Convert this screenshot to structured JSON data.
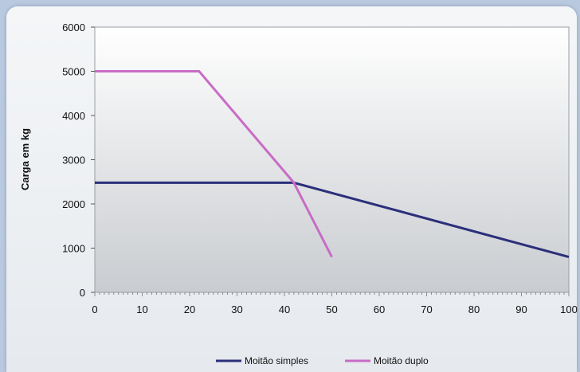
{
  "chart_data": {
    "type": "line",
    "title": "",
    "xlabel": "",
    "ylabel": "Carga em kg",
    "xlim": [
      0,
      100
    ],
    "ylim": [
      0,
      6000
    ],
    "xticks": [
      0,
      10,
      20,
      30,
      40,
      50,
      60,
      70,
      80,
      90,
      100
    ],
    "yticks": [
      0,
      1000,
      2000,
      3000,
      4000,
      5000,
      6000
    ],
    "legend_position": "bottom",
    "series": [
      {
        "name": "Moitão simples",
        "color": "#2b2f7a",
        "points": [
          [
            0,
            2480
          ],
          [
            42,
            2480
          ],
          [
            100,
            800
          ]
        ]
      },
      {
        "name": "Moitão duplo",
        "color": "#c86cc6",
        "points": [
          [
            0,
            5000
          ],
          [
            22,
            5000
          ],
          [
            42,
            2480
          ],
          [
            50,
            800
          ]
        ]
      }
    ]
  }
}
